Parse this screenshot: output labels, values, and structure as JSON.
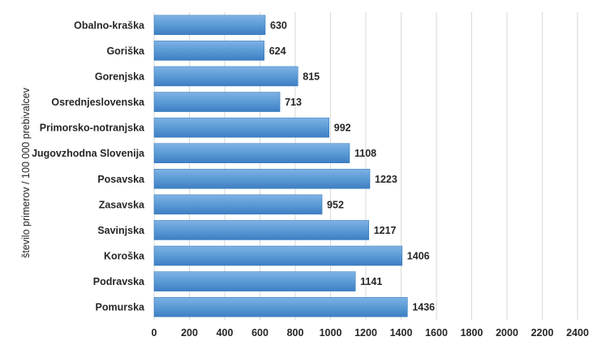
{
  "chart_data": {
    "type": "bar",
    "orientation": "horizontal",
    "title": "",
    "xlabel": "",
    "ylabel": "število primerov / 100 000 prebivalcev",
    "categories": [
      "Obalno-kraška",
      "Goriška",
      "Gorenjska",
      "Osrednjeslovenska",
      "Primorsko-notranjska",
      "Jugovzhodna Slovenija",
      "Posavska",
      "Zasavska",
      "Savinjska",
      "Koroška",
      "Podravska",
      "Pomurska"
    ],
    "values": [
      630,
      624,
      815,
      713,
      992,
      1108,
      1223,
      952,
      1217,
      1406,
      1141,
      1436
    ],
    "xlim": [
      0,
      2400
    ],
    "xticks": [
      "0",
      "200",
      "400",
      "600",
      "800",
      "1000",
      "1200",
      "1400",
      "1600",
      "1800",
      "2000",
      "2200",
      "2400"
    ],
    "grid": "vertical",
    "legend": "none",
    "bar_color": "#5b9bd5",
    "bar_color_dark": "#2f75b5"
  }
}
